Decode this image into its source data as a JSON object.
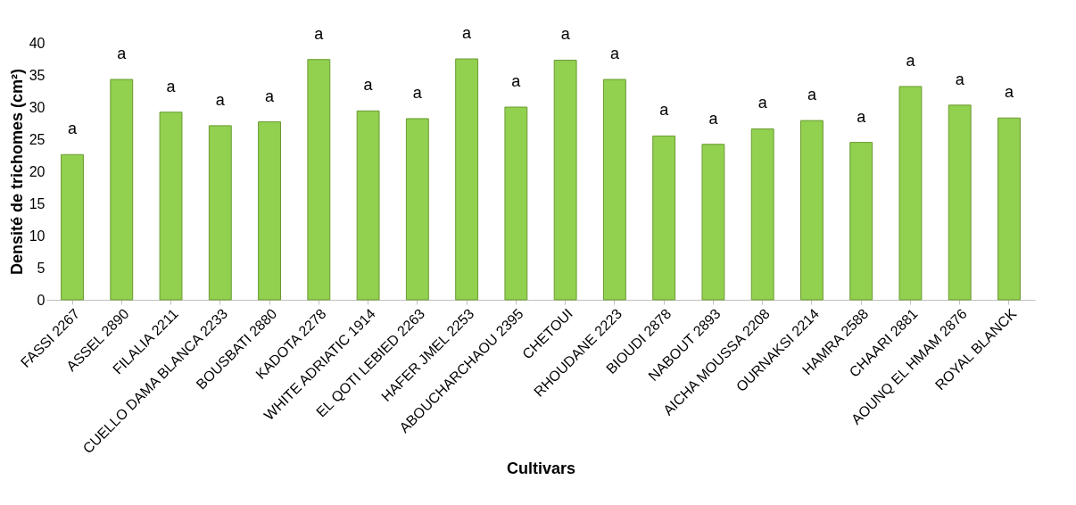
{
  "chart_data": {
    "type": "bar",
    "xlabel": "Cultivars",
    "ylabel": "Densité de trichomes (cm²)",
    "categories": [
      "FASSI 2267",
      "ASSEL 2890",
      "FILALIA 2211",
      "CUELLO DAMA BLANCA 2233",
      "BOUSBATI 2880",
      "KADOTA 2278",
      "WHITE ADRIATIC 1914",
      "EL QOTI LEBIED 2263",
      "HAFER JMEL 2253",
      "ABOUCHARCHAOU 2395",
      "CHETOUI",
      "RHOUDANE 2223",
      "BIOUDI 2878",
      "NABOUT 2893",
      "AICHA MOUSSA 2208",
      "OURNAKSI 2214",
      "HAMRA 2588",
      "CHAARI 2881",
      "AOUNQ EL HMAM 2876",
      "ROYAL BLANCK"
    ],
    "values": [
      22.6,
      34.3,
      29.2,
      27.1,
      27.7,
      37.4,
      29.4,
      28.2,
      37.5,
      30.0,
      37.3,
      34.3,
      25.5,
      24.2,
      26.6,
      27.9,
      24.5,
      33.2,
      30.3,
      28.3
    ],
    "color": "#92d050",
    "ylim": [
      0,
      40
    ],
    "yticks": [
      0,
      5,
      10,
      15,
      20,
      25,
      30,
      35,
      40
    ],
    "grid": false,
    "annotations": [
      {
        "text": "a",
        "x": "FASSI 2267",
        "y": 22.6
      },
      {
        "text": "a",
        "x": "ASSEL 2890",
        "y": 34.3
      },
      {
        "text": "a",
        "x": "FILALIA 2211",
        "y": 29.2
      },
      {
        "text": "a",
        "x": "CUELLO DAMA BLANCA 2233",
        "y": 27.1
      },
      {
        "text": "a",
        "x": "BOUSBATI 2880",
        "y": 27.7
      },
      {
        "text": "a",
        "x": "KADOTA 2278",
        "y": 37.4
      },
      {
        "text": "a",
        "x": "WHITE ADRIATIC 1914",
        "y": 29.4
      },
      {
        "text": "a",
        "x": "EL QOTI LEBIED 2263",
        "y": 28.2
      },
      {
        "text": "a",
        "x": "HAFER JMEL 2253",
        "y": 37.5
      },
      {
        "text": "a",
        "x": "ABOUCHARCHAOU 2395",
        "y": 30.0
      },
      {
        "text": "a",
        "x": "CHETOUI",
        "y": 37.3
      },
      {
        "text": "a",
        "x": "RHOUDANE 2223",
        "y": 34.3
      },
      {
        "text": "a",
        "x": "BIOUDI 2878",
        "y": 25.5
      },
      {
        "text": "a",
        "x": "NABOUT 2893",
        "y": 24.2
      },
      {
        "text": "a",
        "x": "AICHA MOUSSA 2208",
        "y": 26.6
      },
      {
        "text": "a",
        "x": "OURNAKSI 2214",
        "y": 27.9
      },
      {
        "text": "a",
        "x": "HAMRA 2588",
        "y": 24.5
      },
      {
        "text": "a",
        "x": "CHAARI 2881",
        "y": 33.2
      },
      {
        "text": "a",
        "x": "AOUNQ EL HMAM 2876",
        "y": 30.3
      },
      {
        "text": "a",
        "x": "ROYAL BLANCK",
        "y": 28.3
      }
    ]
  }
}
